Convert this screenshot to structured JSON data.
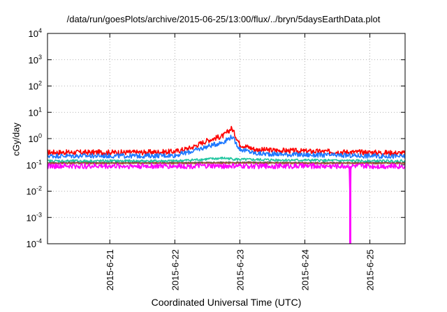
{
  "chart_data": {
    "type": "line",
    "title": "/data/run/goesPlots/archive/2015-06-25/13:00/flux/../bryn/5daysEarthData.plot",
    "xlabel": "Coordinated Universal Time (UTC)",
    "ylabel": "cGy/day",
    "yscale": "log",
    "ylim": [
      0.0001,
      10000
    ],
    "xlim": [
      "2015-06-20T01:00",
      "2015-06-25T13:00"
    ],
    "grid": true,
    "y_ticks": [
      {
        "base": "10",
        "exp": "-4",
        "value": 0.0001
      },
      {
        "base": "10",
        "exp": "-3",
        "value": 0.001
      },
      {
        "base": "10",
        "exp": "-2",
        "value": 0.01
      },
      {
        "base": "10",
        "exp": "-1",
        "value": 0.1
      },
      {
        "base": "10",
        "exp": "0",
        "value": 1
      },
      {
        "base": "10",
        "exp": "1",
        "value": 10
      },
      {
        "base": "10",
        "exp": "2",
        "value": 100
      },
      {
        "base": "10",
        "exp": "3",
        "value": 1000
      },
      {
        "base": "10",
        "exp": "4",
        "value": 10000
      }
    ],
    "x_ticks": [
      {
        "label": "2015-6-21",
        "value": "2015-06-21T00:00"
      },
      {
        "label": "2015-6-22",
        "value": "2015-06-22T00:00"
      },
      {
        "label": "2015-6-23",
        "value": "2015-06-23T00:00"
      },
      {
        "label": "2015-6-24",
        "value": "2015-06-24T00:00"
      },
      {
        "label": "2015-6-25",
        "value": "2015-06-25T00:00"
      }
    ],
    "series": [
      {
        "color": "#ff0000",
        "x": [
          "2015-06-20T01:00",
          "2015-06-21T00:00",
          "2015-06-21T12:00",
          "2015-06-22T00:00",
          "2015-06-22T06:00",
          "2015-06-22T12:00",
          "2015-06-22T18:00",
          "2015-06-22T21:00",
          "2015-06-23T00:00",
          "2015-06-23T06:00",
          "2015-06-24T00:00",
          "2015-06-25T00:00",
          "2015-06-25T13:00"
        ],
        "values": [
          0.3,
          0.3,
          0.3,
          0.32,
          0.45,
          0.85,
          1.3,
          2.5,
          0.6,
          0.38,
          0.33,
          0.3,
          0.28
        ]
      },
      {
        "color": "#1e78ff",
        "x": [
          "2015-06-20T01:00",
          "2015-06-21T00:00",
          "2015-06-21T12:00",
          "2015-06-22T00:00",
          "2015-06-22T06:00",
          "2015-06-22T12:00",
          "2015-06-22T18:00",
          "2015-06-22T21:00",
          "2015-06-23T00:00",
          "2015-06-23T06:00",
          "2015-06-24T00:00",
          "2015-06-25T00:00",
          "2015-06-25T13:00"
        ],
        "values": [
          0.22,
          0.22,
          0.22,
          0.23,
          0.32,
          0.5,
          0.75,
          1.2,
          0.4,
          0.27,
          0.24,
          0.22,
          0.21
        ]
      },
      {
        "color": "#22c6a0",
        "x": [
          "2015-06-20T01:00",
          "2015-06-21T00:00",
          "2015-06-22T00:00",
          "2015-06-22T18:00",
          "2015-06-23T00:00",
          "2015-06-24T00:00",
          "2015-06-25T00:00",
          "2015-06-25T13:00"
        ],
        "values": [
          0.14,
          0.14,
          0.14,
          0.18,
          0.16,
          0.15,
          0.14,
          0.14
        ]
      },
      {
        "color": "#555555",
        "x": [
          "2015-06-20T01:00",
          "2015-06-22T00:00",
          "2015-06-23T00:00",
          "2015-06-24T00:00",
          "2015-06-25T13:00"
        ],
        "values": [
          0.12,
          0.12,
          0.125,
          0.12,
          0.12
        ]
      },
      {
        "color": "#a0522d",
        "x": [
          "2015-06-20T01:00",
          "2015-06-22T00:00",
          "2015-06-23T00:00",
          "2015-06-24T00:00",
          "2015-06-25T13:00"
        ],
        "values": [
          0.115,
          0.115,
          0.118,
          0.115,
          0.115
        ]
      },
      {
        "color": "#ff00ff",
        "x": [
          "2015-06-20T01:00",
          "2015-06-22T00:00",
          "2015-06-23T00:00",
          "2015-06-24T00:00",
          "2015-06-24T16:30",
          "2015-06-24T16:45",
          "2015-06-24T17:00",
          "2015-06-25T00:00",
          "2015-06-25T13:00"
        ],
        "values": [
          0.09,
          0.09,
          0.09,
          0.09,
          0.09,
          0.0001,
          0.09,
          0.09,
          0.09
        ]
      }
    ]
  }
}
